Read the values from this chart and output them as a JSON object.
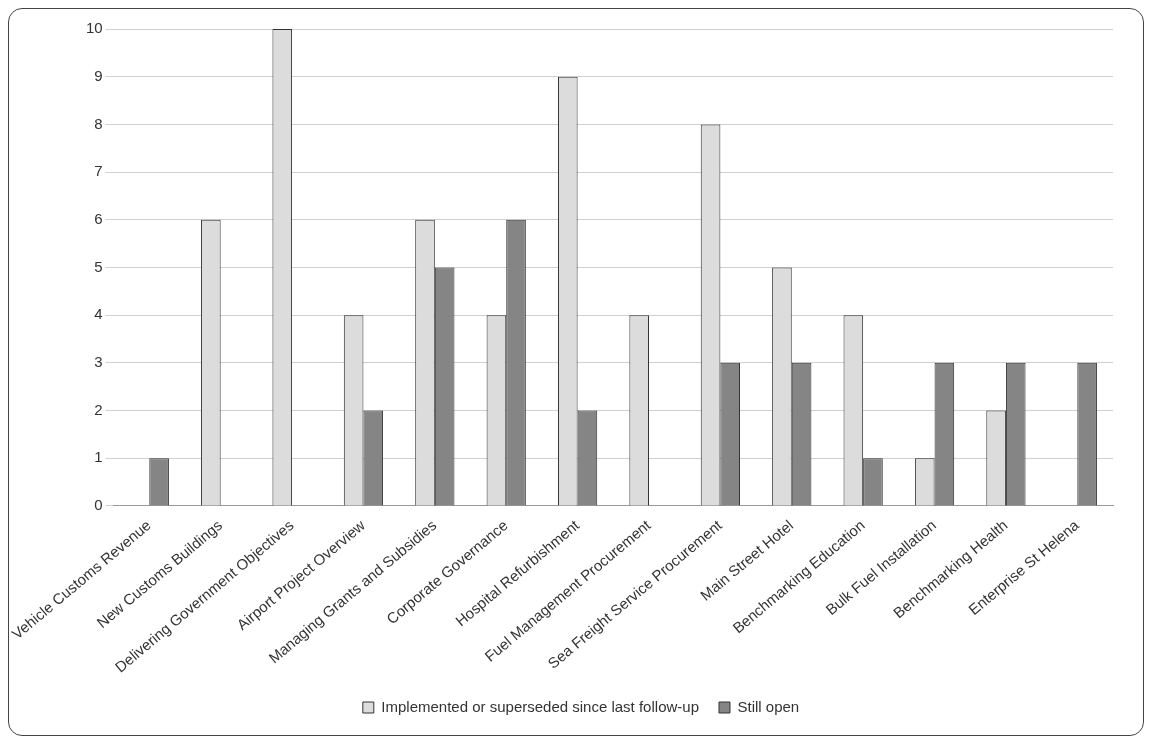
{
  "chart_data": {
    "type": "bar",
    "categories": [
      "Vehicle Customs Revenue",
      "New Customs Buildings",
      "Delivering Government Objectives",
      "Airport Project Overview",
      "Managing Grants and Subsidies",
      "Corporate Governance",
      "Hospital Refurbishment",
      "Fuel Management Procurement",
      "Sea Freight Service Procurement",
      "Main Street Hotel",
      "Benchmarking Education",
      "Bulk Fuel Installation",
      "Benchmarking Health",
      "Enterprise St Helena"
    ],
    "series": [
      {
        "name": "Implemented or superseded since last follow-up",
        "color": "#dcdcdc",
        "values": [
          null,
          6,
          10,
          4,
          6,
          4,
          9,
          4,
          8,
          5,
          4,
          1,
          2,
          null
        ]
      },
      {
        "name": "Still open",
        "color": "#858585",
        "values": [
          1,
          null,
          null,
          2,
          5,
          6,
          2,
          null,
          3,
          3,
          1,
          3,
          3,
          3
        ]
      }
    ],
    "ylim": [
      0,
      10
    ],
    "yticks": [
      0,
      1,
      2,
      3,
      4,
      5,
      6,
      7,
      8,
      9,
      10
    ],
    "grid": "y",
    "legend": "bottom"
  }
}
